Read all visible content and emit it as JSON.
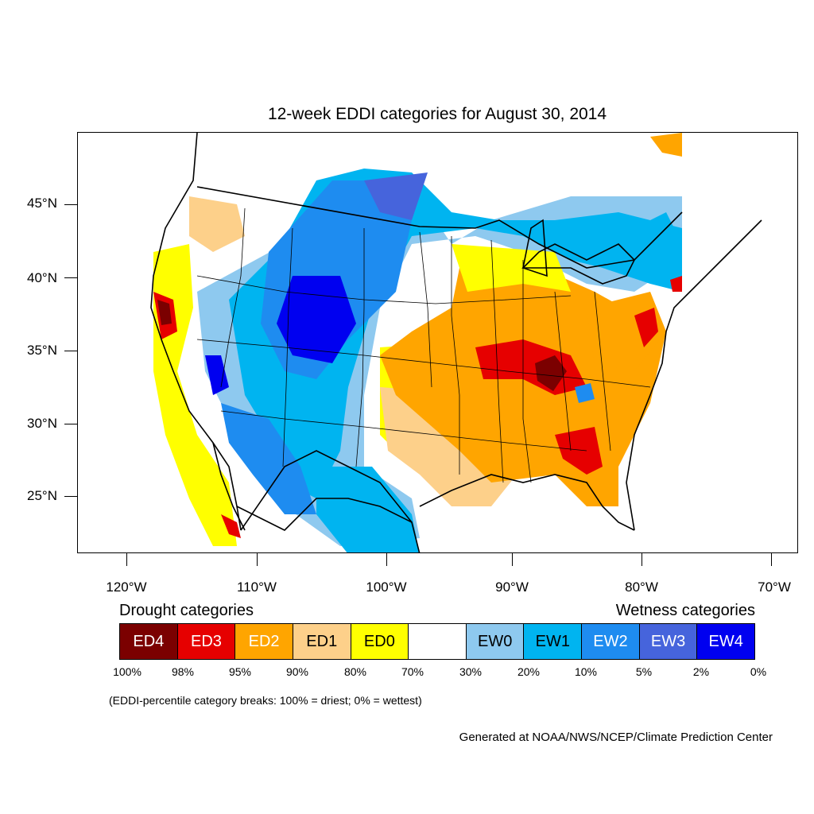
{
  "title": "12-week EDDI categories for August 30, 2014",
  "axes": {
    "lat_labels": [
      "45°N",
      "40°N",
      "35°N",
      "30°N",
      "25°N"
    ],
    "lon_labels": [
      "120°W",
      "110°W",
      "100°W",
      "90°W",
      "80°W",
      "70°W"
    ]
  },
  "legend": {
    "drought_heading": "Drought categories",
    "wetness_heading": "Wetness categories",
    "categories": [
      {
        "label": "ED4",
        "color": "#7b0000",
        "text_color": "#ffffff"
      },
      {
        "label": "ED3",
        "color": "#e60000",
        "text_color": "#ffffff"
      },
      {
        "label": "ED2",
        "color": "#ffa500",
        "text_color": "#ffffff"
      },
      {
        "label": "ED1",
        "color": "#fdd08a",
        "text_color": "#000000"
      },
      {
        "label": "ED0",
        "color": "#ffff00",
        "text_color": "#000000"
      },
      {
        "label": "",
        "color": "#ffffff",
        "text_color": "#000000"
      },
      {
        "label": "EW0",
        "color": "#8ec9ef",
        "text_color": "#000000"
      },
      {
        "label": "EW1",
        "color": "#00b4f0",
        "text_color": "#000000"
      },
      {
        "label": "EW2",
        "color": "#1e8cf0",
        "text_color": "#ffffff"
      },
      {
        "label": "EW3",
        "color": "#4664dc",
        "text_color": "#ffffff"
      },
      {
        "label": "EW4",
        "color": "#0000f0",
        "text_color": "#ffffff"
      }
    ],
    "breaks": [
      "100%",
      "98%",
      "95%",
      "90%",
      "80%",
      "70%",
      "30%",
      "20%",
      "10%",
      "5%",
      "2%",
      "0%"
    ]
  },
  "note": "(EDDI-percentile category breaks: 100% = driest; 0% = wettest)",
  "credit": "Generated at NOAA/NWS/NCEP/Climate Prediction Center"
}
